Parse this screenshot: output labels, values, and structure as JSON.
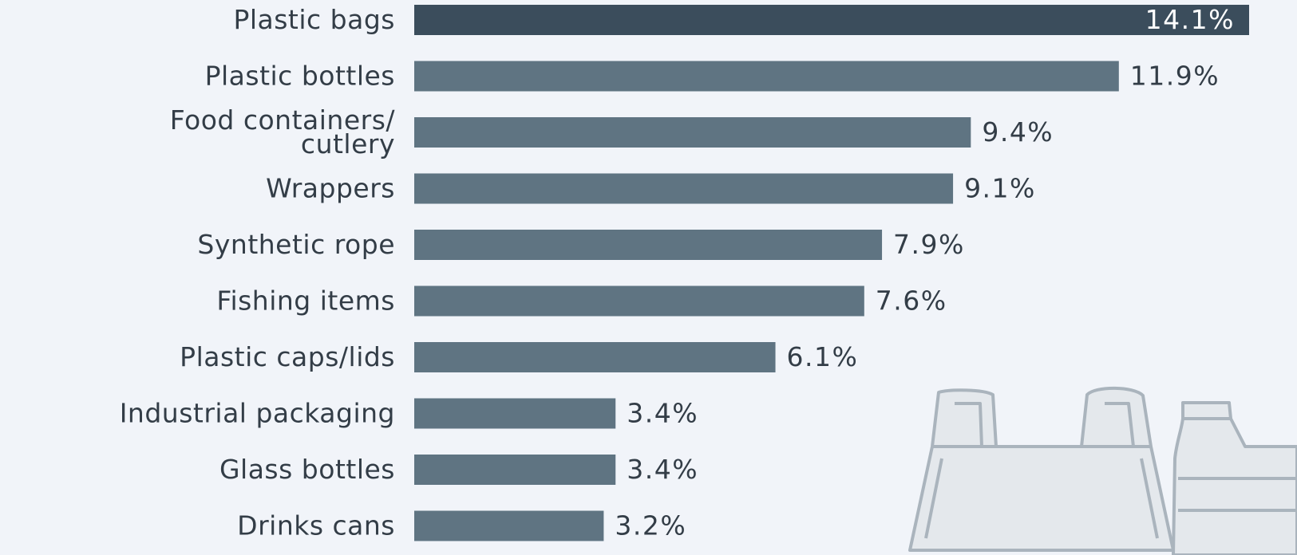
{
  "chart_data": {
    "type": "bar",
    "orientation": "horizontal",
    "categories": [
      [
        "Plastic bags"
      ],
      [
        "Plastic bottles"
      ],
      [
        "Food containers/",
        "cutlery"
      ],
      [
        "Wrappers"
      ],
      [
        "Synthetic rope"
      ],
      [
        "Fishing items"
      ],
      [
        "Plastic caps/lids"
      ],
      [
        "Industrial packaging"
      ],
      [
        "Glass bottles"
      ],
      [
        "Drinks cans"
      ]
    ],
    "values": [
      14.1,
      11.9,
      9.4,
      9.1,
      7.9,
      7.6,
      6.1,
      3.4,
      3.4,
      3.2
    ],
    "value_labels": [
      "14.1%",
      "11.9%",
      "9.4%",
      "9.1%",
      "7.9%",
      "7.6%",
      "6.1%",
      "3.4%",
      "3.4%",
      "3.2%"
    ],
    "xlim": [
      0,
      14.1
    ],
    "grid": false,
    "colors": {
      "highlight_bar": "#3b4d5c",
      "bar": "#5f7482",
      "background": "#f1f4f9",
      "text": "#333d47"
    }
  },
  "decoration": {
    "icon": "plastic-bag-and-bottle-icon"
  }
}
